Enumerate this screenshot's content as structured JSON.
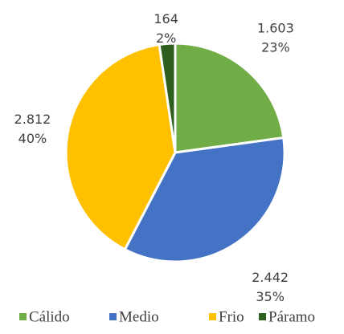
{
  "chart_data": {
    "type": "pie",
    "categories": [
      "Cálido",
      "Medio",
      "Frio",
      "Páramo"
    ],
    "values": [
      1603,
      2442,
      2812,
      164
    ],
    "value_labels": [
      "1.603",
      "2.442",
      "2.812",
      "164"
    ],
    "percents": [
      23,
      35,
      40,
      2
    ],
    "percent_labels": [
      "23%",
      "35%",
      "40%",
      "2%"
    ],
    "colors": [
      "#70ad47",
      "#4472c4",
      "#ffc000",
      "#2f5f1f"
    ],
    "legend": "bottom"
  }
}
